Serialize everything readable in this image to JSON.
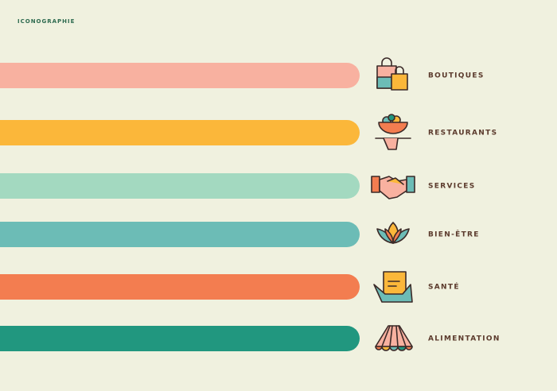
{
  "header": {
    "title": "ICONOGRAPHIE"
  },
  "items": [
    {
      "label": "BOUTIQUES",
      "color": "#f8b1a0"
    },
    {
      "label": "RESTAURANTS",
      "color": "#fbb73a"
    },
    {
      "label": "SERVICES",
      "color": "#a3d9c0"
    },
    {
      "label": "BIEN-ÊTRE",
      "color": "#6cbcb6"
    },
    {
      "label": "SANTÉ",
      "color": "#f37d50"
    },
    {
      "label": "ALIMENTATION",
      "color": "#21977f"
    }
  ]
}
